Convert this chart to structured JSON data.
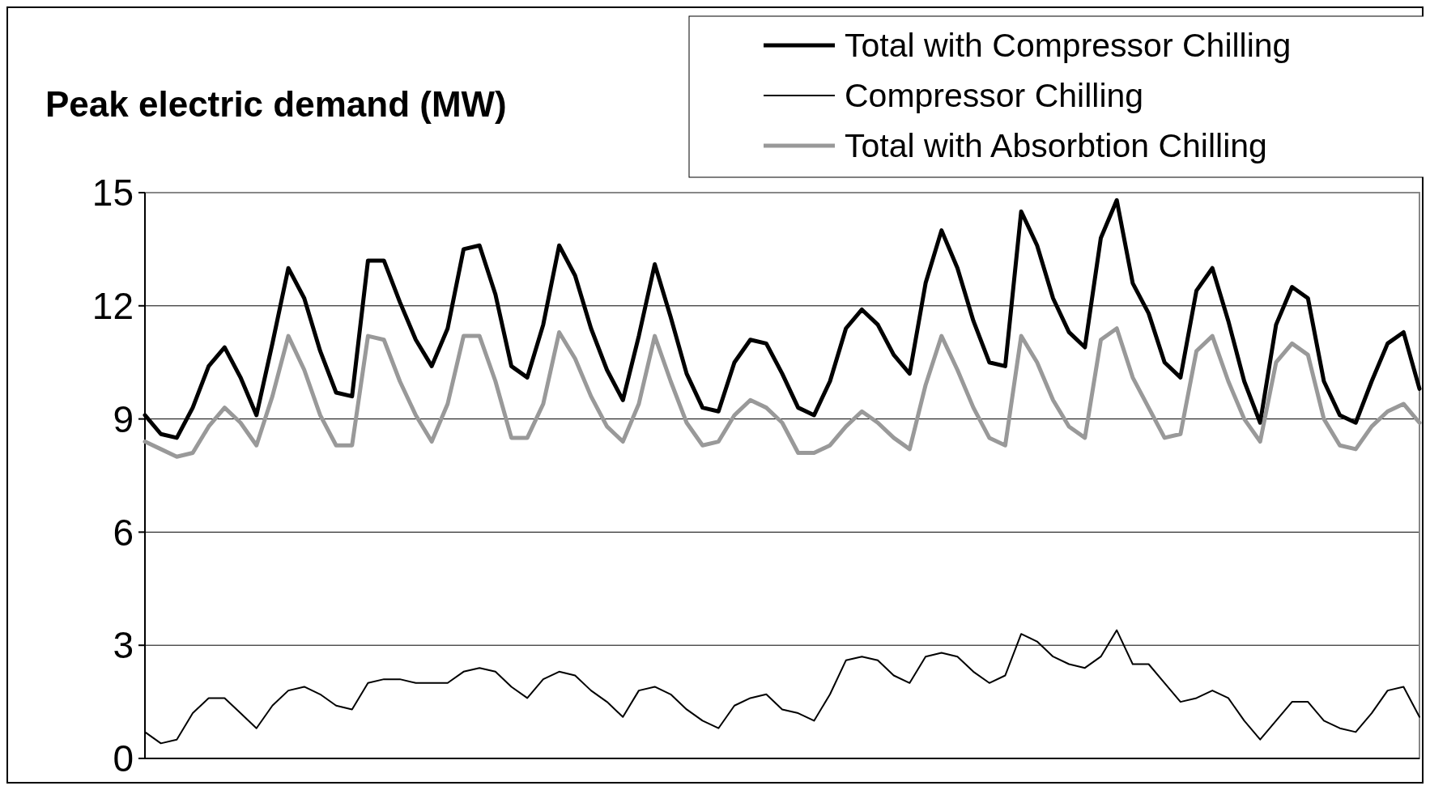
{
  "chart_data": {
    "type": "line",
    "ylabel": "Peak electric demand (MW)",
    "categories": [
      null,
      null,
      null,
      null,
      null,
      null,
      null,
      null,
      null,
      null,
      null,
      null,
      null,
      null,
      null,
      null,
      null,
      null,
      null,
      null,
      null,
      null,
      null,
      null,
      null,
      null,
      null,
      null,
      null,
      null,
      null,
      null,
      null,
      null,
      null,
      null,
      null,
      null,
      null,
      null,
      null,
      null,
      null,
      null,
      null,
      null,
      null,
      null,
      null,
      null,
      null,
      null,
      null,
      null,
      null,
      null,
      null,
      null,
      null,
      null,
      null,
      null,
      null,
      null,
      null,
      null,
      null,
      null,
      null,
      null,
      null,
      null,
      null,
      null,
      null,
      null,
      null,
      null,
      null,
      null,
      null
    ],
    "ylim": [
      0,
      15
    ],
    "yticks": [
      0,
      3,
      6,
      9,
      12,
      15
    ],
    "grid": "y",
    "legend": "top right",
    "line_style": "solid",
    "series": [
      {
        "name": "Total with Compressor Chilling",
        "color": "#000000",
        "values": [
          9.1,
          8.6,
          8.5,
          9.3,
          10.4,
          10.9,
          10.1,
          9.1,
          11.0,
          13.0,
          12.2,
          10.8,
          9.7,
          9.6,
          13.2,
          13.2,
          12.1,
          11.1,
          10.4,
          11.4,
          13.5,
          13.6,
          12.3,
          10.4,
          10.1,
          11.5,
          13.6,
          12.8,
          11.4,
          10.3,
          9.5,
          11.2,
          13.1,
          11.7,
          10.2,
          9.3,
          9.2,
          10.5,
          11.1,
          11.0,
          10.2,
          9.3,
          9.1,
          10.0,
          11.4,
          11.9,
          11.5,
          10.7,
          10.2,
          12.6,
          14.0,
          13.0,
          11.6,
          10.5,
          10.4,
          14.5,
          13.6,
          12.2,
          11.3,
          10.9,
          13.8,
          14.8,
          12.6,
          11.8,
          10.5,
          10.1,
          12.4,
          13.0,
          11.6,
          10.0,
          8.9,
          11.5,
          12.5,
          12.2,
          10.0,
          9.1,
          8.9,
          10.0,
          11.0,
          11.3,
          9.8
        ]
      },
      {
        "name": "Compressor Chilling",
        "color": "#000000",
        "values": [
          0.7,
          0.4,
          0.5,
          1.2,
          1.6,
          1.6,
          1.2,
          0.8,
          1.4,
          1.8,
          1.9,
          1.7,
          1.4,
          1.3,
          2.0,
          2.1,
          2.1,
          2.0,
          2.0,
          2.0,
          2.3,
          2.4,
          2.3,
          1.9,
          1.6,
          2.1,
          2.3,
          2.2,
          1.8,
          1.5,
          1.1,
          1.8,
          1.9,
          1.7,
          1.3,
          1.0,
          0.8,
          1.4,
          1.6,
          1.7,
          1.3,
          1.2,
          1.0,
          1.7,
          2.6,
          2.7,
          2.6,
          2.2,
          2.0,
          2.7,
          2.8,
          2.7,
          2.3,
          2.0,
          2.2,
          3.3,
          3.1,
          2.7,
          2.5,
          2.4,
          2.7,
          3.4,
          2.5,
          2.5,
          2.0,
          1.5,
          1.6,
          1.8,
          1.6,
          1.0,
          0.5,
          1.0,
          1.5,
          1.5,
          1.0,
          0.8,
          0.7,
          1.2,
          1.8,
          1.9,
          1.1
        ]
      },
      {
        "name": "Total with Absorbtion Chilling",
        "color": "#999999",
        "values": [
          8.4,
          8.2,
          8.0,
          8.1,
          8.8,
          9.3,
          8.9,
          8.3,
          9.6,
          11.2,
          10.3,
          9.1,
          8.3,
          8.3,
          11.2,
          11.1,
          10.0,
          9.1,
          8.4,
          9.4,
          11.2,
          11.2,
          10.0,
          8.5,
          8.5,
          9.4,
          11.3,
          10.6,
          9.6,
          8.8,
          8.4,
          9.4,
          11.2,
          10.0,
          8.9,
          8.3,
          8.4,
          9.1,
          9.5,
          9.3,
          8.9,
          8.1,
          8.1,
          8.3,
          8.8,
          9.2,
          8.9,
          8.5,
          8.2,
          9.9,
          11.2,
          10.3,
          9.3,
          8.5,
          8.3,
          11.2,
          10.5,
          9.5,
          8.8,
          8.5,
          11.1,
          11.4,
          10.1,
          9.3,
          8.5,
          8.6,
          10.8,
          11.2,
          10.0,
          9.0,
          8.4,
          10.5,
          11.0,
          10.7,
          9.0,
          8.3,
          8.2,
          8.8,
          9.2,
          9.4,
          8.9
        ]
      }
    ]
  }
}
